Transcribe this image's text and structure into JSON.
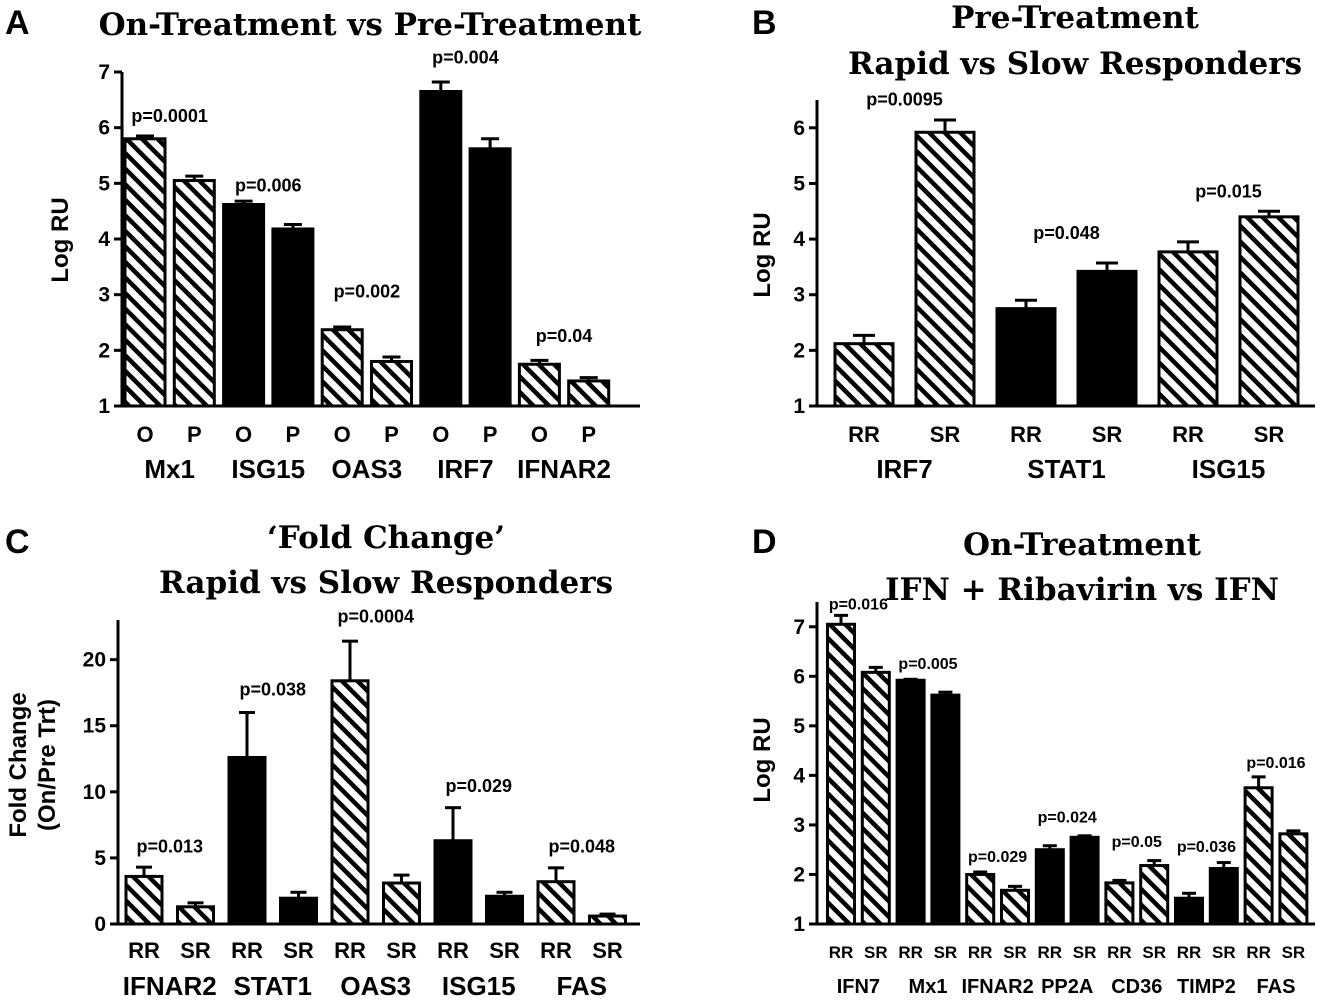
{
  "chart_data": [
    {
      "panel": "A",
      "type": "bar",
      "title": [
        "On-Treatment vs Pre-Treatment"
      ],
      "ylabel": "Log RU",
      "ylim": [
        1,
        7
      ],
      "yticks": [
        1,
        2,
        3,
        4,
        5,
        6,
        7
      ],
      "bars": [
        {
          "group": "Mx1",
          "label": "O",
          "value": 5.8,
          "error": 0.05,
          "fill": "hatch"
        },
        {
          "group": "Mx1",
          "label": "P",
          "value": 5.05,
          "error": 0.08,
          "fill": "hatch"
        },
        {
          "group": "ISG15",
          "label": "O",
          "value": 4.62,
          "error": 0.06,
          "fill": "solid"
        },
        {
          "group": "ISG15",
          "label": "P",
          "value": 4.18,
          "error": 0.08,
          "fill": "solid"
        },
        {
          "group": "OAS3",
          "label": "O",
          "value": 2.37,
          "error": 0.05,
          "fill": "hatch"
        },
        {
          "group": "OAS3",
          "label": "P",
          "value": 1.8,
          "error": 0.08,
          "fill": "hatch"
        },
        {
          "group": "IRF7",
          "label": "O",
          "value": 6.65,
          "error": 0.17,
          "fill": "solid"
        },
        {
          "group": "IRF7",
          "label": "P",
          "value": 5.62,
          "error": 0.18,
          "fill": "solid"
        },
        {
          "group": "IFNAR2",
          "label": "O",
          "value": 1.75,
          "error": 0.07,
          "fill": "hatch"
        },
        {
          "group": "IFNAR2",
          "label": "P",
          "value": 1.45,
          "error": 0.06,
          "fill": "hatch"
        }
      ],
      "groups": [
        "Mx1",
        "ISG15",
        "OAS3",
        "IRF7",
        "IFNAR2"
      ],
      "pvalues": [
        {
          "group": "Mx1",
          "text": "p=0.0001",
          "y": 6.1
        },
        {
          "group": "ISG15",
          "text": "p=0.006",
          "y": 4.85
        },
        {
          "group": "OAS3",
          "text": "p=0.002",
          "y": 2.95
        },
        {
          "group": "IRF7",
          "text": "p=0.004",
          "y": 7.15
        },
        {
          "group": "IFNAR2",
          "text": "p=0.04",
          "y": 2.15
        }
      ]
    },
    {
      "panel": "B",
      "type": "bar",
      "title": [
        "Pre-Treatment",
        "Rapid vs Slow Responders"
      ],
      "ylabel": "Log RU",
      "ylim": [
        1,
        6.5
      ],
      "yticks": [
        1,
        2,
        3,
        4,
        5,
        6
      ],
      "bars": [
        {
          "group": "IRF7",
          "label": "RR",
          "value": 2.12,
          "error": 0.15,
          "fill": "hatch"
        },
        {
          "group": "IRF7",
          "label": "SR",
          "value": 5.92,
          "error": 0.22,
          "fill": "hatch"
        },
        {
          "group": "STAT1",
          "label": "RR",
          "value": 2.75,
          "error": 0.15,
          "fill": "solid"
        },
        {
          "group": "STAT1",
          "label": "SR",
          "value": 3.42,
          "error": 0.15,
          "fill": "solid"
        },
        {
          "group": "ISG15",
          "label": "RR",
          "value": 3.77,
          "error": 0.18,
          "fill": "hatch"
        },
        {
          "group": "ISG15",
          "label": "SR",
          "value": 4.4,
          "error": 0.1,
          "fill": "hatch"
        }
      ],
      "groups": [
        "IRF7",
        "STAT1",
        "ISG15"
      ],
      "pvalues": [
        {
          "group": "IRF7",
          "text": "p=0.0095",
          "y": 6.4
        },
        {
          "group": "STAT1",
          "text": "p=0.048",
          "y": 4.0
        },
        {
          "group": "ISG15",
          "text": "p=0.015",
          "y": 4.75
        }
      ]
    },
    {
      "panel": "C",
      "type": "bar",
      "title": [
        "‘Fold Change’",
        "Rapid vs Slow Responders"
      ],
      "ylabel": [
        "Fold Change",
        "(On/Pre Trt)"
      ],
      "ylim": [
        0,
        23
      ],
      "yticks": [
        0,
        5,
        10,
        15,
        20
      ],
      "bars": [
        {
          "group": "IFNAR2",
          "label": "RR",
          "value": 3.6,
          "error": 0.7,
          "fill": "hatch"
        },
        {
          "group": "IFNAR2",
          "label": "SR",
          "value": 1.3,
          "error": 0.3,
          "fill": "hatch"
        },
        {
          "group": "STAT1",
          "label": "RR",
          "value": 12.6,
          "error": 3.4,
          "fill": "solid"
        },
        {
          "group": "STAT1",
          "label": "SR",
          "value": 1.95,
          "error": 0.45,
          "fill": "solid"
        },
        {
          "group": "OAS3",
          "label": "RR",
          "value": 18.4,
          "error": 3.0,
          "fill": "hatch"
        },
        {
          "group": "OAS3",
          "label": "SR",
          "value": 3.1,
          "error": 0.6,
          "fill": "hatch"
        },
        {
          "group": "ISG15",
          "label": "RR",
          "value": 6.3,
          "error": 2.5,
          "fill": "solid"
        },
        {
          "group": "ISG15",
          "label": "SR",
          "value": 2.1,
          "error": 0.3,
          "fill": "solid"
        },
        {
          "group": "FAS",
          "label": "RR",
          "value": 3.2,
          "error": 1.05,
          "fill": "hatch"
        },
        {
          "group": "FAS",
          "label": "SR",
          "value": 0.6,
          "error": 0.15,
          "fill": "hatch"
        }
      ],
      "groups": [
        "IFNAR2",
        "STAT1",
        "OAS3",
        "ISG15",
        "FAS"
      ],
      "pvalues": [
        {
          "group": "IFNAR2",
          "text": "p=0.013",
          "y": 5.4
        },
        {
          "group": "STAT1",
          "text": "p=0.038",
          "y": 17.3
        },
        {
          "group": "OAS3",
          "text": "p=0.0004",
          "y": 22.8
        },
        {
          "group": "ISG15",
          "text": "p=0.029",
          "y": 10.0
        },
        {
          "group": "FAS",
          "text": "p=0.048",
          "y": 5.4
        }
      ]
    },
    {
      "panel": "D",
      "type": "bar",
      "title": [
        "On-Treatment",
        "IFN + Ribavirin vs IFN"
      ],
      "ylabel": "Log RU",
      "ylim": [
        1,
        7.5
      ],
      "yticks": [
        1,
        2,
        3,
        4,
        5,
        6,
        7
      ],
      "bars": [
        {
          "group": "IFN7",
          "label": "RR",
          "value": 7.05,
          "error": 0.18,
          "fill": "hatch"
        },
        {
          "group": "IFN7",
          "label": "SR",
          "value": 6.08,
          "error": 0.1,
          "fill": "hatch"
        },
        {
          "group": "Mx1",
          "label": "RR",
          "value": 5.92,
          "error": 0.02,
          "fill": "solid"
        },
        {
          "group": "Mx1",
          "label": "SR",
          "value": 5.62,
          "error": 0.06,
          "fill": "solid"
        },
        {
          "group": "IFNAR2",
          "label": "RR",
          "value": 2.0,
          "error": 0.05,
          "fill": "hatch"
        },
        {
          "group": "IFNAR2",
          "label": "SR",
          "value": 1.68,
          "error": 0.08,
          "fill": "hatch"
        },
        {
          "group": "PP2A",
          "label": "RR",
          "value": 2.5,
          "error": 0.08,
          "fill": "solid"
        },
        {
          "group": "PP2A",
          "label": "SR",
          "value": 2.75,
          "error": 0.03,
          "fill": "solid"
        },
        {
          "group": "CD36",
          "label": "RR",
          "value": 1.83,
          "error": 0.05,
          "fill": "hatch"
        },
        {
          "group": "CD36",
          "label": "SR",
          "value": 2.18,
          "error": 0.1,
          "fill": "hatch"
        },
        {
          "group": "TIMP2",
          "label": "RR",
          "value": 1.52,
          "error": 0.1,
          "fill": "solid"
        },
        {
          "group": "TIMP2",
          "label": "SR",
          "value": 2.12,
          "error": 0.12,
          "fill": "solid"
        },
        {
          "group": "FAS",
          "label": "RR",
          "value": 3.75,
          "error": 0.22,
          "fill": "hatch"
        },
        {
          "group": "FAS",
          "label": "SR",
          "value": 2.82,
          "error": 0.06,
          "fill": "hatch"
        }
      ],
      "groups": [
        "IFN7",
        "Mx1",
        "IFNAR2",
        "PP2A",
        "CD36",
        "TIMP2",
        "FAS"
      ],
      "pvalues": [
        {
          "group": "IFN7",
          "text": "p=0.016",
          "y": 7.35
        },
        {
          "group": "Mx1",
          "text": "p=0.005",
          "y": 6.15
        },
        {
          "group": "IFNAR2",
          "text": "p=0.029",
          "y": 2.25
        },
        {
          "group": "PP2A",
          "text": "p=0.024",
          "y": 3.05
        },
        {
          "group": "CD36",
          "text": "p=0.05",
          "y": 2.55
        },
        {
          "group": "TIMP2",
          "text": "p=0.036",
          "y": 2.45
        },
        {
          "group": "FAS",
          "text": "p=0.016",
          "y": 4.15
        }
      ]
    }
  ]
}
